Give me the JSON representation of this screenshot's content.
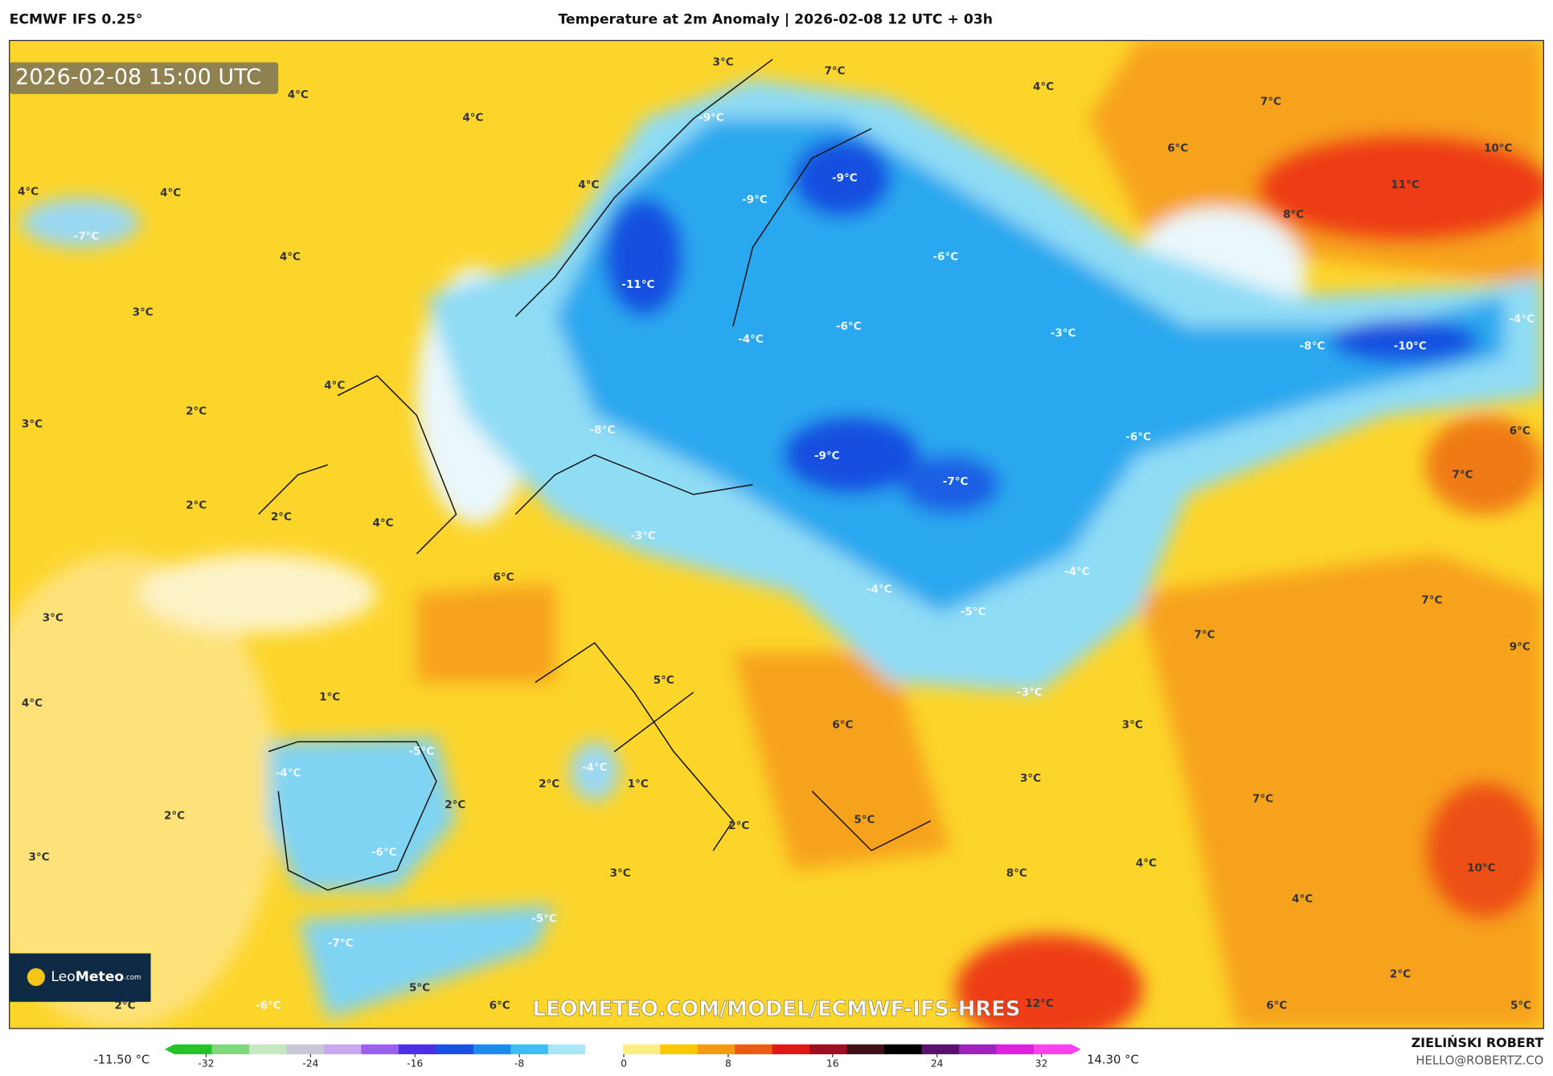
{
  "header": {
    "model": "ECMWF IFS 0.25°",
    "title": "Temperature at 2m Anomaly | 2026-02-08 12 UTC + 03h"
  },
  "map": {
    "timestamp": "2026-02-08 15:00 UTC",
    "watermark": "LEOMETEO.COM/MODEL/ECMWF-IFS-HRES",
    "labels": [
      "3°C",
      "7°C",
      "4°C",
      "7°C",
      "4°C",
      "4°C",
      "-9°C",
      "6°C",
      "10°C",
      "-9°C",
      "4°C",
      "4°C",
      "-9°C",
      "4°C",
      "11°C",
      "8°C",
      "-7°C",
      "4°C",
      "-6°C",
      "-11°C",
      "3°C",
      "-6°C",
      "-3°C",
      "-4°C",
      "-4°C",
      "-8°C",
      "-10°C",
      "4°C",
      "2°C",
      "3°C",
      "-8°C",
      "-6°C",
      "6°C",
      "-9°C",
      "-7°C",
      "7°C",
      "2°C",
      "2°C",
      "4°C",
      "-3°C",
      "-4°C",
      "6°C",
      "-4°C",
      "7°C",
      "3°C",
      "-5°C",
      "7°C",
      "9°C",
      "5°C",
      "-3°C",
      "1°C",
      "4°C",
      "6°C",
      "3°C",
      "-5°C",
      "-4°C",
      "-4°C",
      "2°C",
      "1°C",
      "3°C",
      "2°C",
      "7°C",
      "2°C",
      "5°C",
      "2°C",
      "-6°C",
      "3°C",
      "4°C",
      "10°C",
      "3°C",
      "8°C",
      "4°C",
      "-5°C",
      "-7°C",
      "2°C",
      "5°C",
      "2°C",
      "-6°C",
      "6°C",
      "12°C",
      "6°C",
      "5°C"
    ]
  },
  "logo": {
    "regular": "Leo",
    "bold": "Meteo",
    "suffix": ".com"
  },
  "colorbar": {
    "min_label": "-11.50 °C",
    "max_label": "14.30 °C",
    "range": [
      -32,
      32
    ],
    "ticks": [
      -32,
      -24,
      -16,
      -8,
      0,
      8,
      16,
      24,
      32
    ],
    "colors": [
      "#22c42a",
      "#7fd87a",
      "#c6e8c0",
      "#c8c8d8",
      "#c9a8f0",
      "#9a5ef0",
      "#4a2ee8",
      "#1a50e6",
      "#1a8cf0",
      "#3cc0f4",
      "#a8e6f8",
      "#ffffff",
      "#ffef80",
      "#ffc800",
      "#f89a10",
      "#f05a10",
      "#e01818",
      "#a00c20",
      "#401018",
      "#000000",
      "#5a1070",
      "#a020c0",
      "#e020e0",
      "#ff40f0"
    ]
  },
  "credit": {
    "author": "ZIELIŃSKI ROBERT",
    "email": "HELLO@ROBERTZ.CO"
  }
}
